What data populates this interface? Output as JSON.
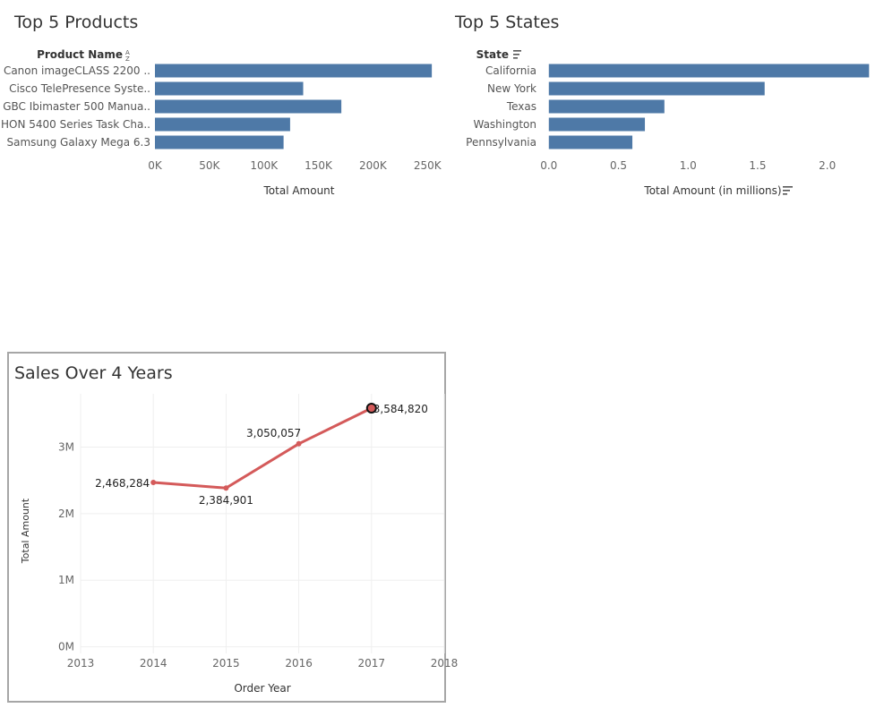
{
  "panels": {
    "products_title": "Top 5 Products",
    "states_title": "Top 5 States",
    "sales_title": "Sales Over 4 Years"
  },
  "chart_data": [
    {
      "type": "bar",
      "orientation": "horizontal",
      "title": "Top 5 Products",
      "category_header": "Product Name",
      "categories": [
        "Canon imageCLASS 2200 ..",
        "Cisco TelePresence Syste..",
        "GBC Ibimaster 500 Manua..",
        "HON 5400 Series Task Cha..",
        "Samsung Galaxy Mega 6.3"
      ],
      "values": [
        254000,
        136000,
        171000,
        124000,
        118000
      ],
      "xlabel": "Total Amount",
      "xticks": [
        "0K",
        "50K",
        "100K",
        "150K",
        "200K",
        "250K"
      ],
      "xlim": [
        0,
        258000
      ],
      "bar_color": "#4e79a7",
      "sort_icon": "sort-alpha-icon"
    },
    {
      "type": "bar",
      "orientation": "horizontal",
      "title": "Top 5 States",
      "category_header": "State",
      "categories": [
        "California",
        "New York",
        "Texas",
        "Washington",
        "Pennsylvania"
      ],
      "values": [
        2.3,
        1.55,
        0.83,
        0.69,
        0.6
      ],
      "xlabel": "Total Amount (in millions)",
      "xticks": [
        "0.0",
        "0.5",
        "1.0",
        "1.5",
        "2.0"
      ],
      "xlim": [
        -0.05,
        2.33
      ],
      "bar_color": "#4e79a7",
      "sort_icon": "sort-desc-icon"
    },
    {
      "type": "line",
      "title": "Sales Over 4 Years",
      "xlabel": "Order Year",
      "ylabel": "Total Amount",
      "x": [
        2014,
        2015,
        2016,
        2017
      ],
      "values": [
        2468284,
        2384901,
        3050057,
        3584820
      ],
      "labels": [
        "2,468,284",
        "2,384,901",
        "3,050,057",
        "3,584,820"
      ],
      "xticks": [
        "2013",
        "2014",
        "2015",
        "2016",
        "2017",
        "2018"
      ],
      "yticks": [
        "0M",
        "1M",
        "2M",
        "3M"
      ],
      "xlim": [
        2013,
        2018
      ],
      "ylim": [
        -100000,
        3800000
      ],
      "line_color": "#d45a5a",
      "grid": true,
      "highlighted_point": 2017
    }
  ]
}
